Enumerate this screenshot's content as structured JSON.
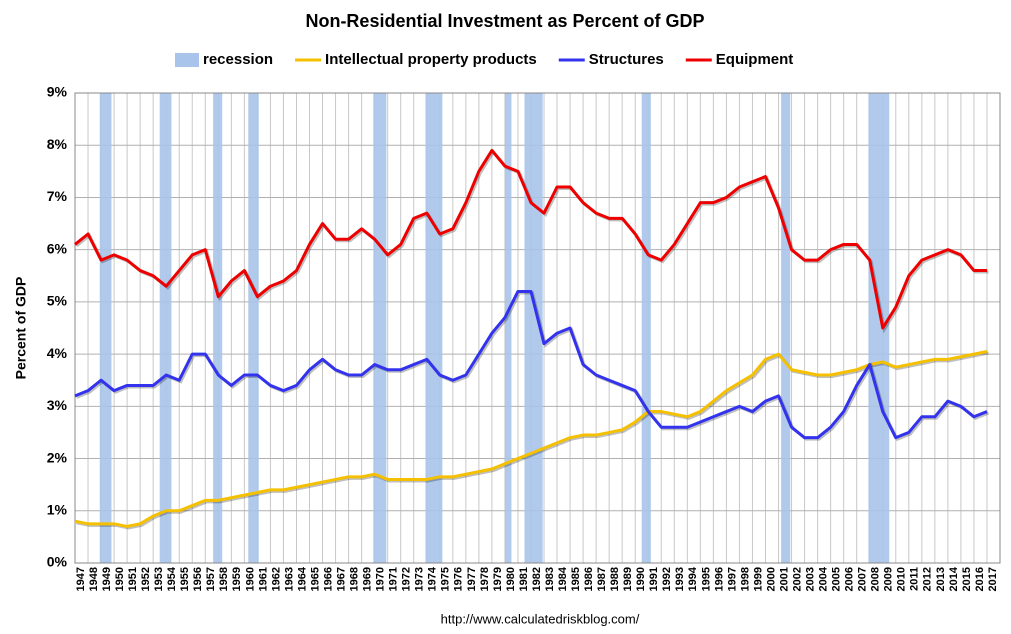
{
  "chart_data": {
    "type": "line",
    "title": "Non-Residential Investment as Percent of GDP",
    "y_label": "Percent of GDP",
    "source": "http://www.calculatedriskblog.com/",
    "legend": "top",
    "grid": true,
    "recession": {
      "name": "recession",
      "color": "#a8c4ea",
      "periods": [
        [
          1948.9,
          1949.8
        ],
        [
          1953.5,
          1954.4
        ],
        [
          1957.6,
          1958.3
        ],
        [
          1960.3,
          1961.1
        ],
        [
          1969.9,
          1970.9
        ],
        [
          1973.9,
          1975.2
        ],
        [
          1980.0,
          1980.5
        ],
        [
          1981.5,
          1982.9
        ],
        [
          1990.5,
          1991.2
        ],
        [
          2001.2,
          2001.9
        ],
        [
          2007.9,
          2009.5
        ]
      ]
    },
    "x": [
      1947,
      1948,
      1949,
      1950,
      1951,
      1952,
      1953,
      1954,
      1955,
      1956,
      1957,
      1958,
      1959,
      1960,
      1961,
      1962,
      1963,
      1964,
      1965,
      1966,
      1967,
      1968,
      1969,
      1970,
      1971,
      1972,
      1973,
      1974,
      1975,
      1976,
      1977,
      1978,
      1979,
      1980,
      1981,
      1982,
      1983,
      1984,
      1985,
      1986,
      1987,
      1988,
      1989,
      1990,
      1991,
      1992,
      1993,
      1994,
      1995,
      1996,
      1997,
      1998,
      1999,
      2000,
      2001,
      2002,
      2003,
      2004,
      2005,
      2006,
      2007,
      2008,
      2009,
      2010,
      2011,
      2012,
      2013,
      2014,
      2015,
      2016,
      2017
    ],
    "series": [
      {
        "name": "Intellectual property products",
        "color": "#f5c000",
        "values": [
          0.8,
          0.75,
          0.75,
          0.75,
          0.7,
          0.75,
          0.9,
          1.0,
          1.0,
          1.1,
          1.2,
          1.2,
          1.25,
          1.3,
          1.35,
          1.4,
          1.4,
          1.45,
          1.5,
          1.55,
          1.6,
          1.65,
          1.65,
          1.7,
          1.6,
          1.6,
          1.6,
          1.6,
          1.65,
          1.65,
          1.7,
          1.75,
          1.8,
          1.9,
          2.0,
          2.1,
          2.2,
          2.3,
          2.4,
          2.45,
          2.45,
          2.5,
          2.55,
          2.7,
          2.9,
          2.9,
          2.85,
          2.8,
          2.9,
          3.1,
          3.3,
          3.45,
          3.6,
          3.9,
          4.0,
          3.7,
          3.65,
          3.6,
          3.6,
          3.65,
          3.7,
          3.8,
          3.85,
          3.75,
          3.8,
          3.85,
          3.9,
          3.9,
          3.95,
          4.0,
          4.05
        ]
      },
      {
        "name": "Structures",
        "color": "#3333ee",
        "values": [
          3.2,
          3.3,
          3.5,
          3.3,
          3.4,
          3.4,
          3.4,
          3.6,
          3.5,
          4.0,
          4.0,
          3.6,
          3.4,
          3.6,
          3.6,
          3.4,
          3.3,
          3.4,
          3.7,
          3.9,
          3.7,
          3.6,
          3.6,
          3.8,
          3.7,
          3.7,
          3.8,
          3.9,
          3.6,
          3.5,
          3.6,
          4.0,
          4.4,
          4.7,
          5.2,
          5.2,
          4.2,
          4.4,
          4.5,
          3.8,
          3.6,
          3.5,
          3.4,
          3.3,
          2.9,
          2.6,
          2.6,
          2.6,
          2.7,
          2.8,
          2.9,
          3.0,
          2.9,
          3.1,
          3.2,
          2.6,
          2.4,
          2.4,
          2.6,
          2.9,
          3.4,
          3.8,
          2.9,
          2.4,
          2.5,
          2.8,
          2.8,
          3.1,
          3.0,
          2.8,
          2.9
        ]
      },
      {
        "name": "Equipment",
        "color": "#ee0000",
        "values": [
          6.1,
          6.3,
          5.8,
          5.9,
          5.8,
          5.6,
          5.5,
          5.3,
          5.6,
          5.9,
          6.0,
          5.1,
          5.4,
          5.6,
          5.1,
          5.3,
          5.4,
          5.6,
          6.1,
          6.5,
          6.2,
          6.2,
          6.4,
          6.2,
          5.9,
          6.1,
          6.6,
          6.7,
          6.3,
          6.4,
          6.9,
          7.5,
          7.9,
          7.6,
          7.5,
          6.9,
          6.7,
          7.2,
          7.2,
          6.9,
          6.7,
          6.6,
          6.6,
          6.3,
          5.9,
          5.8,
          6.1,
          6.5,
          6.9,
          6.9,
          7.0,
          7.2,
          7.3,
          7.4,
          6.8,
          6.0,
          5.8,
          5.8,
          6.0,
          6.1,
          6.1,
          5.8,
          4.5,
          4.9,
          5.5,
          5.8,
          5.9,
          6.0,
          5.9,
          5.6,
          5.6
        ]
      }
    ],
    "xlim": [
      1947,
      2018
    ],
    "xticks": [
      1947,
      1948,
      1949,
      1950,
      1951,
      1952,
      1953,
      1954,
      1955,
      1956,
      1957,
      1958,
      1959,
      1960,
      1961,
      1962,
      1963,
      1964,
      1965,
      1966,
      1967,
      1968,
      1969,
      1970,
      1971,
      1972,
      1973,
      1974,
      1975,
      1976,
      1977,
      1978,
      1979,
      1980,
      1981,
      1982,
      1983,
      1984,
      1985,
      1986,
      1987,
      1988,
      1989,
      1990,
      1991,
      1992,
      1993,
      1994,
      1995,
      1996,
      1997,
      1998,
      1999,
      2000,
      2001,
      2002,
      2003,
      2004,
      2005,
      2006,
      2007,
      2008,
      2009,
      2010,
      2011,
      2012,
      2013,
      2014,
      2015,
      2016,
      2017
    ],
    "ylim": [
      0,
      9
    ],
    "yticks": [
      {
        "value": 0,
        "label": "0%"
      },
      {
        "value": 1,
        "label": "1%"
      },
      {
        "value": 2,
        "label": "2%"
      },
      {
        "value": 3,
        "label": "3%"
      },
      {
        "value": 4,
        "label": "4%"
      },
      {
        "value": 5,
        "label": "5%"
      },
      {
        "value": 6,
        "label": "6%"
      },
      {
        "value": 7,
        "label": "7%"
      },
      {
        "value": 8,
        "label": "8%"
      },
      {
        "value": 9,
        "label": "9%"
      }
    ]
  }
}
